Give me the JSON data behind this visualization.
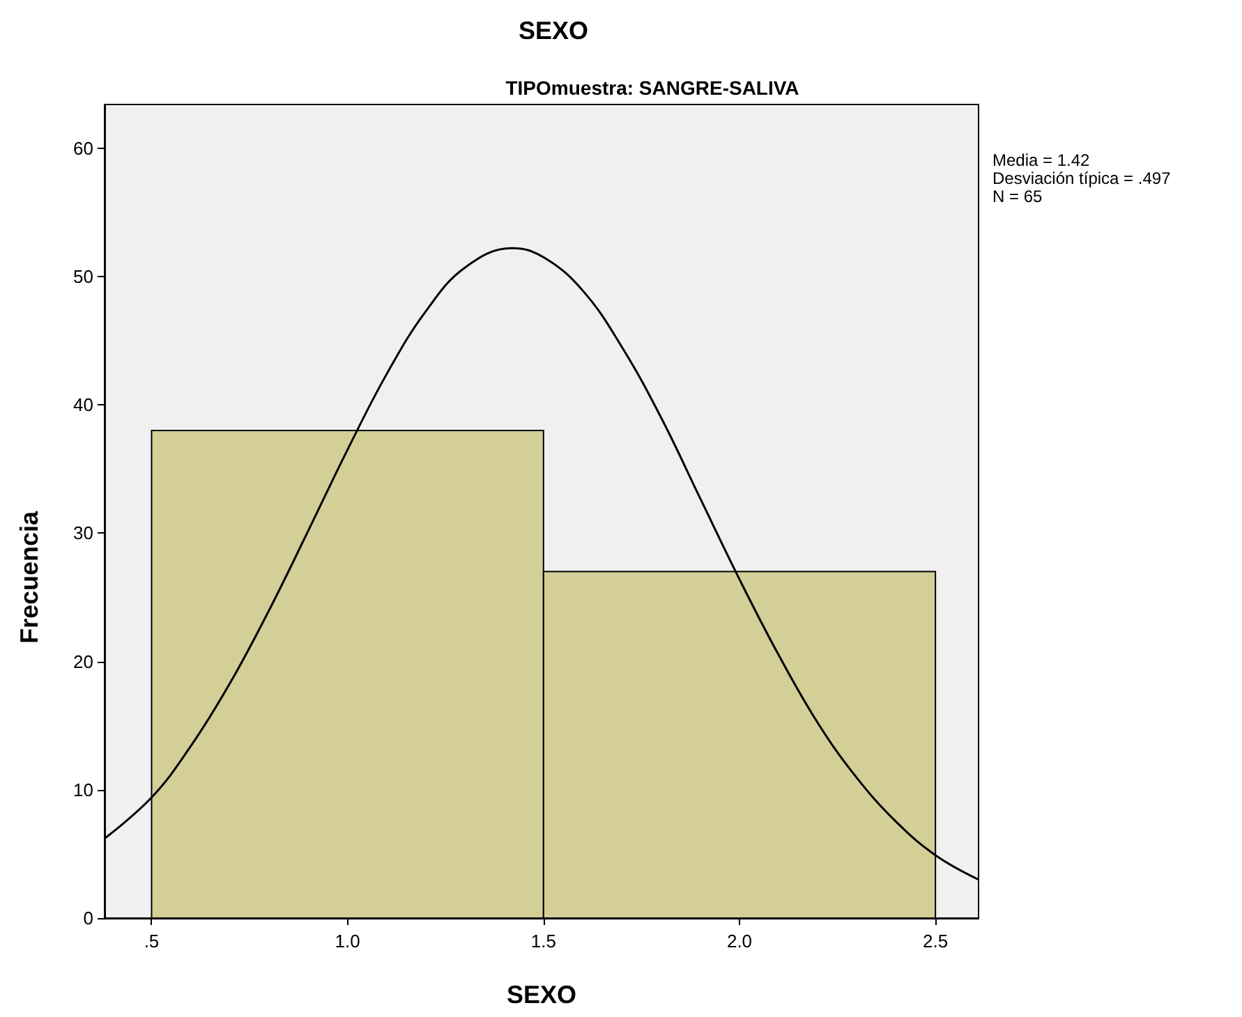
{
  "chart_data": {
    "type": "histogram",
    "title": "SEXO",
    "subtitle": "TIPOmuestra: SANGRE-SALIVA",
    "xlabel": "SEXO",
    "ylabel": "Frecuencia",
    "annotations": [
      "Media = 1.42",
      "Desviación típica = .497",
      "N = 65"
    ],
    "series": [
      {
        "bins": [
          0.5,
          1.5,
          2.5
        ],
        "values": [
          38,
          27
        ],
        "color": "#d4cf97"
      },
      {
        "type": "line",
        "color": "#000000",
        "x": [
          0.38,
          0.5,
          0.6,
          0.7,
          0.8,
          0.9,
          1.0,
          1.1,
          1.2,
          1.3,
          1.42,
          1.5,
          1.6,
          1.7,
          1.8,
          1.9,
          2.0,
          2.1,
          2.2,
          2.3,
          2.4,
          2.5,
          2.61
        ],
        "values": [
          6.2,
          9.4,
          13.4,
          18.3,
          24.0,
          30.2,
          36.5,
          42.4,
          47.3,
          50.7,
          52.2,
          51.5,
          48.9,
          44.5,
          39.0,
          32.7,
          26.4,
          20.5,
          15.2,
          10.9,
          7.5,
          4.9,
          3.0
        ]
      }
    ],
    "xlim": [
      0.38,
      2.61
    ],
    "ylim": [
      0,
      63.4
    ],
    "xticks": [
      {
        "value": 0.5,
        "label": ".5"
      },
      {
        "value": 1.0,
        "label": "1.0"
      },
      {
        "value": 1.5,
        "label": "1.5"
      },
      {
        "value": 2.0,
        "label": "2.0"
      },
      {
        "value": 2.5,
        "label": "2.5"
      }
    ],
    "yticks": [
      0,
      10,
      20,
      30,
      40,
      50,
      60
    ],
    "grid": false,
    "marker": "none"
  }
}
